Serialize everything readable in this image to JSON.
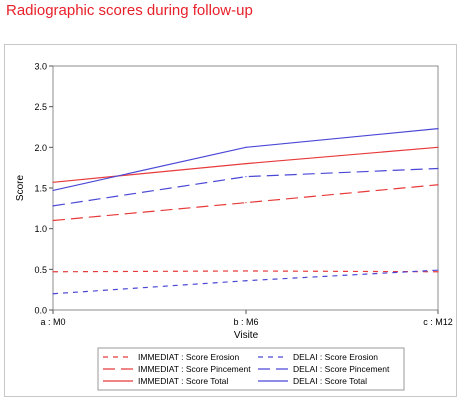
{
  "page": {
    "title": "Radiographic scores during follow-up",
    "title_color": "#e8202a"
  },
  "chart_data": {
    "type": "line",
    "title": "",
    "xlabel": "Visite",
    "ylabel": "Score",
    "categories": [
      "a : M0",
      "b : M6",
      "c : M12"
    ],
    "ylim": [
      0,
      3.0
    ],
    "yticks": [
      "0.0",
      "0.5",
      "1.0",
      "1.5",
      "2.0",
      "2.5",
      "3.0"
    ],
    "grid": false,
    "legend_position": "bottom",
    "series": [
      {
        "name": "IMMEDIAT : Score Erosion",
        "values": [
          0.47,
          0.48,
          0.47
        ],
        "color": "#e83a3a",
        "dash": "short"
      },
      {
        "name": "DELAI : Score Erosion",
        "values": [
          0.2,
          0.36,
          0.49
        ],
        "color": "#4b48d6",
        "dash": "short"
      },
      {
        "name": "IMMEDIAT : Score Pincement",
        "values": [
          1.1,
          1.32,
          1.54
        ],
        "color": "#e83a3a",
        "dash": "long"
      },
      {
        "name": "DELAI : Score Pincement",
        "values": [
          1.28,
          1.64,
          1.74
        ],
        "color": "#4b48d6",
        "dash": "long"
      },
      {
        "name": "IMMEDIAT : Score Total",
        "values": [
          1.57,
          1.8,
          2.0
        ],
        "color": "#e83a3a",
        "dash": "solid"
      },
      {
        "name": "DELAI : Score Total",
        "values": [
          1.47,
          2.0,
          2.23
        ],
        "color": "#4b48d6",
        "dash": "solid"
      }
    ]
  }
}
